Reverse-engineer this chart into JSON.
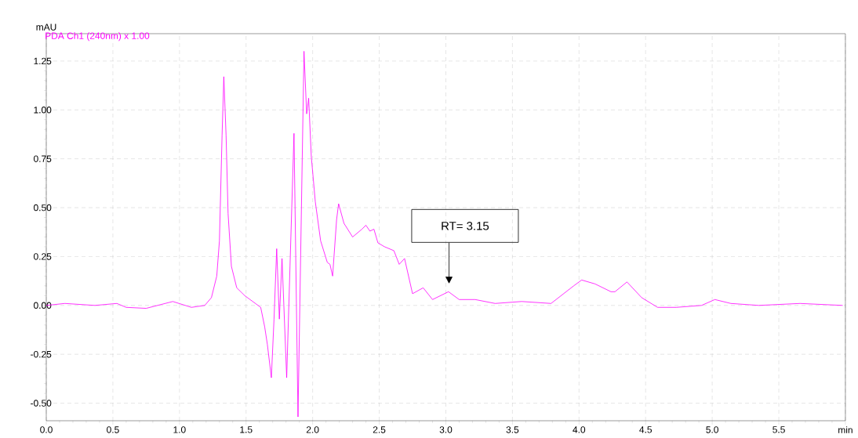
{
  "chart_data": {
    "type": "line",
    "ylabel": "mAU",
    "x": [
      0.0,
      0.14,
      0.365,
      0.53,
      0.6,
      0.75,
      0.95,
      1.09,
      1.19,
      1.24,
      1.28,
      1.3,
      1.32,
      1.333,
      1.35,
      1.365,
      1.39,
      1.43,
      1.49,
      1.61,
      1.64,
      1.66,
      1.69,
      1.71,
      1.73,
      1.75,
      1.77,
      1.805,
      1.83,
      1.86,
      1.89,
      1.935,
      1.955,
      1.97,
      1.99,
      2.02,
      2.06,
      2.11,
      2.13,
      2.15,
      2.18,
      2.195,
      2.235,
      2.3,
      2.37,
      2.4,
      2.43,
      2.46,
      2.49,
      2.54,
      2.61,
      2.65,
      2.69,
      2.75,
      2.83,
      2.9,
      3.02,
      3.1,
      3.22,
      3.37,
      3.57,
      3.79,
      3.96,
      4.02,
      4.12,
      4.24,
      4.27,
      4.36,
      4.47,
      4.59,
      4.73,
      4.92,
      5.02,
      5.14,
      5.35,
      5.66,
      5.98
    ],
    "series": [
      {
        "name": "PDA Ch1 (240nm) x 1.00",
        "color": "#ff00ff",
        "values": [
          0.0,
          0.01,
          0.0,
          0.01,
          -0.01,
          -0.015,
          0.02,
          -0.01,
          0.0,
          0.04,
          0.15,
          0.33,
          0.87,
          1.17,
          0.87,
          0.47,
          0.2,
          0.09,
          0.05,
          -0.01,
          -0.11,
          -0.2,
          -0.37,
          -0.07,
          0.29,
          -0.07,
          0.24,
          -0.37,
          0.2,
          0.88,
          -0.57,
          1.3,
          0.98,
          1.06,
          0.76,
          0.53,
          0.33,
          0.22,
          0.21,
          0.15,
          0.44,
          0.52,
          0.42,
          0.35,
          0.39,
          0.41,
          0.38,
          0.39,
          0.32,
          0.3,
          0.28,
          0.21,
          0.24,
          0.06,
          0.09,
          0.03,
          0.07,
          0.03,
          0.03,
          0.01,
          0.02,
          0.01,
          0.1,
          0.13,
          0.11,
          0.07,
          0.07,
          0.12,
          0.04,
          -0.01,
          -0.01,
          0.0,
          0.03,
          0.01,
          0.0,
          0.01,
          0.0
        ]
      }
    ],
    "xlim": [
      0,
      6
    ],
    "ylim": [
      -0.59,
      1.39
    ],
    "xticks": [
      {
        "value": 0,
        "label": "0.0"
      },
      {
        "value": 0.5,
        "label": "0.5"
      },
      {
        "value": 1,
        "label": "1.0"
      },
      {
        "value": 1.5,
        "label": "1.5"
      },
      {
        "value": 2,
        "label": "2.0"
      },
      {
        "value": 2.5,
        "label": "2.5"
      },
      {
        "value": 3,
        "label": "3.0"
      },
      {
        "value": 3.5,
        "label": "3.5"
      },
      {
        "value": 4,
        "label": "4.0"
      },
      {
        "value": 4.5,
        "label": "4.5"
      },
      {
        "value": 5,
        "label": "5.0"
      },
      {
        "value": 5.5,
        "label": "5.5"
      },
      {
        "value": 6,
        "label": "min"
      }
    ],
    "yticks": [
      {
        "value": -0.5,
        "label": "-0.50"
      },
      {
        "value": -0.25,
        "label": "-0.25"
      },
      {
        "value": 0,
        "label": "0.00"
      },
      {
        "value": 0.25,
        "label": "0.25"
      },
      {
        "value": 0.5,
        "label": "0.50"
      },
      {
        "value": 0.75,
        "label": "0.75"
      },
      {
        "value": 1,
        "label": "1.00"
      },
      {
        "value": 1.25,
        "label": "1.25"
      }
    ],
    "annotations": [
      "RT= 3.15"
    ],
    "grid": true,
    "legend": "top left",
    "marker": "none",
    "line_style": "solid"
  }
}
